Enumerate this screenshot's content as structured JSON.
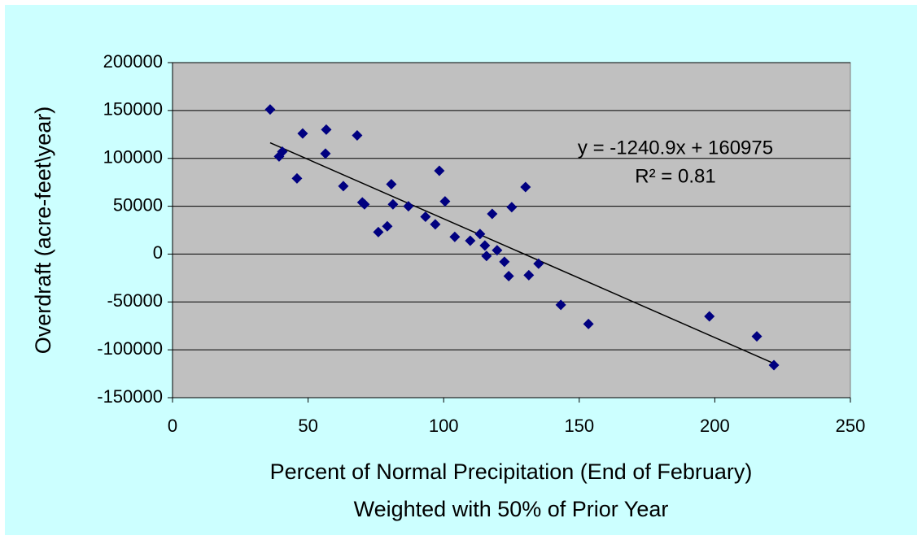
{
  "chart_data": {
    "type": "scatter",
    "x_label": [
      "Percent of Normal Precipitation (End of February)",
      "Weighted with 50% of Prior Year"
    ],
    "y_label": "Overdraft (acre-feet\\year)",
    "x": [
      36,
      39.3,
      40.5,
      45.9,
      48,
      56.7,
      56.4,
      63,
      68.1,
      70,
      70.8,
      75.9,
      79.2,
      80.7,
      81.3,
      87,
      93.3,
      96.9,
      98.4,
      100.5,
      104.1,
      109.8,
      113.4,
      115.2,
      115.8,
      117.9,
      119.7,
      122.4,
      124,
      125.1,
      130.2,
      131.4,
      135,
      143.2,
      153.4,
      198,
      215.5,
      221.8
    ],
    "values": [
      151000,
      102000,
      107000,
      79000,
      126000,
      130000,
      105000,
      71000,
      124000,
      54000,
      52000,
      23000,
      29000,
      73000,
      52000,
      50000,
      39000,
      31000,
      87000,
      55000,
      18000,
      14000,
      21000,
      9000,
      -2000,
      42000,
      4000,
      -8000,
      -23000,
      49000,
      70000,
      -22000,
      -10000,
      -53000,
      -73000,
      -65000,
      -86000,
      -116000
    ],
    "color": "#000080",
    "trendline": {
      "slope": -1240.9,
      "intercept": 160975,
      "color": "#000000",
      "equation": "y = -1240.9x + 160975",
      "r_squared": "R² = 0.81"
    },
    "xlim": [
      0,
      250
    ],
    "xticks": [
      0,
      50,
      100,
      150,
      200,
      250
    ],
    "ylim": [
      -150000,
      200000
    ],
    "yticks": [
      -150000,
      -100000,
      -50000,
      0,
      50000,
      100000,
      150000,
      200000
    ],
    "grid": true,
    "plot_background": "#c0c0c0",
    "background": "#ccffff"
  }
}
